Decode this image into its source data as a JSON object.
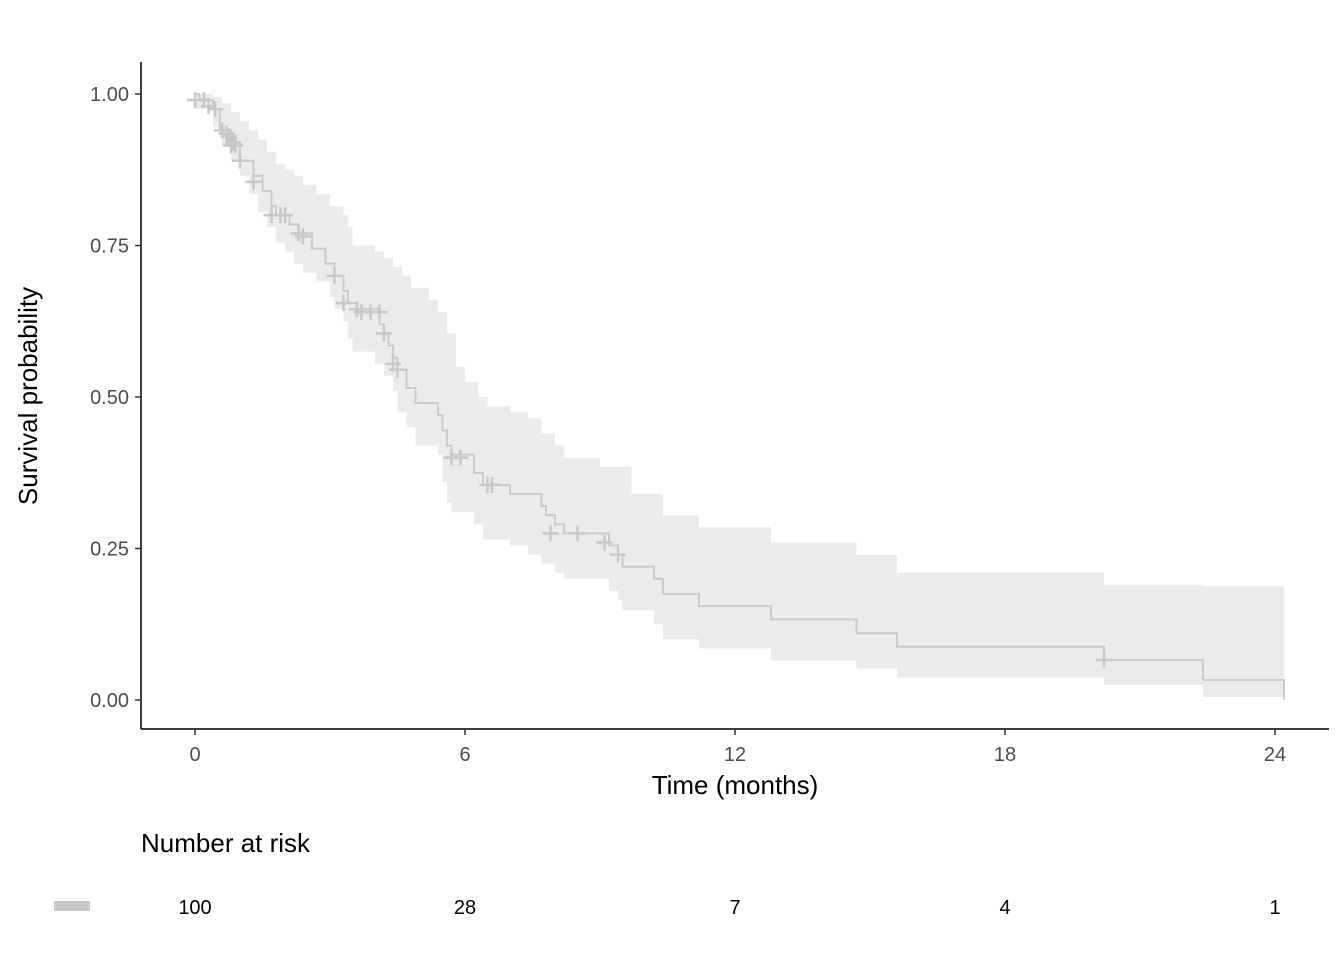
{
  "chart_data": {
    "type": "line",
    "subtype": "kaplan-meier",
    "xlabel": "Time (months)",
    "ylabel": "Survival probability",
    "xlim": [
      -1.2,
      25.2
    ],
    "ylim": [
      -0.05,
      1.05
    ],
    "x_ticks": [
      0,
      6,
      12,
      18,
      24
    ],
    "y_ticks": [
      0,
      0.25,
      0.5,
      0.75,
      1.0
    ],
    "y_tick_labels": [
      "0.00",
      "0.25",
      "0.50",
      "0.75",
      "1.00"
    ],
    "grid": false,
    "colors": {
      "line": "#c8c8c8",
      "band": "#ebebeb",
      "censor": "#c8c8c8",
      "axis": "#000000"
    },
    "series": [
      {
        "survival_steps": [
          [
            0,
            1.0
          ],
          [
            0.1,
            0.99
          ],
          [
            0.4,
            0.975
          ],
          [
            0.55,
            0.94
          ],
          [
            0.8,
            0.915
          ],
          [
            1.0,
            0.89
          ],
          [
            1.3,
            0.865
          ],
          [
            1.5,
            0.84
          ],
          [
            1.7,
            0.815
          ],
          [
            1.8,
            0.8
          ],
          [
            2.1,
            0.785
          ],
          [
            2.3,
            0.77
          ],
          [
            2.6,
            0.745
          ],
          [
            2.9,
            0.72
          ],
          [
            3.1,
            0.7
          ],
          [
            3.3,
            0.675
          ],
          [
            3.4,
            0.655
          ],
          [
            3.6,
            0.645
          ],
          [
            4.1,
            0.62
          ],
          [
            4.2,
            0.605
          ],
          [
            4.3,
            0.585
          ],
          [
            4.4,
            0.565
          ],
          [
            4.5,
            0.545
          ],
          [
            4.7,
            0.515
          ],
          [
            4.9,
            0.49
          ],
          [
            5.4,
            0.47
          ],
          [
            5.5,
            0.445
          ],
          [
            5.6,
            0.42
          ],
          [
            5.7,
            0.405
          ],
          [
            6.2,
            0.375
          ],
          [
            6.4,
            0.355
          ],
          [
            7.0,
            0.34
          ],
          [
            7.7,
            0.32
          ],
          [
            7.8,
            0.305
          ],
          [
            8.0,
            0.29
          ],
          [
            8.2,
            0.275
          ],
          [
            9.2,
            0.255
          ],
          [
            9.4,
            0.24
          ],
          [
            9.5,
            0.22
          ],
          [
            10.2,
            0.2
          ],
          [
            10.4,
            0.175
          ],
          [
            11.2,
            0.155
          ],
          [
            12.8,
            0.133
          ],
          [
            14.7,
            0.11
          ],
          [
            15.6,
            0.088
          ],
          [
            20.2,
            0.066
          ],
          [
            22.4,
            0.033
          ],
          [
            24.2,
            0.0
          ]
        ],
        "ci_upper": [
          [
            0,
            1.0
          ],
          [
            0.4,
            0.995
          ],
          [
            0.6,
            0.985
          ],
          [
            0.8,
            0.97
          ],
          [
            1.0,
            0.955
          ],
          [
            1.2,
            0.94
          ],
          [
            1.4,
            0.925
          ],
          [
            1.6,
            0.905
          ],
          [
            1.8,
            0.885
          ],
          [
            2.0,
            0.875
          ],
          [
            2.2,
            0.865
          ],
          [
            2.4,
            0.85
          ],
          [
            2.7,
            0.835
          ],
          [
            3.0,
            0.815
          ],
          [
            3.3,
            0.8
          ],
          [
            3.4,
            0.78
          ],
          [
            3.5,
            0.75
          ],
          [
            4.0,
            0.74
          ],
          [
            4.2,
            0.73
          ],
          [
            4.4,
            0.715
          ],
          [
            4.6,
            0.7
          ],
          [
            4.8,
            0.68
          ],
          [
            5.2,
            0.66
          ],
          [
            5.4,
            0.64
          ],
          [
            5.6,
            0.605
          ],
          [
            5.8,
            0.55
          ],
          [
            6.0,
            0.525
          ],
          [
            6.3,
            0.5
          ],
          [
            6.5,
            0.485
          ],
          [
            7.0,
            0.475
          ],
          [
            7.4,
            0.465
          ],
          [
            7.7,
            0.44
          ],
          [
            8.0,
            0.42
          ],
          [
            8.2,
            0.4
          ],
          [
            9.0,
            0.385
          ],
          [
            9.7,
            0.34
          ],
          [
            10.4,
            0.305
          ],
          [
            11.2,
            0.285
          ],
          [
            12.8,
            0.26
          ],
          [
            14.7,
            0.24
          ],
          [
            15.6,
            0.21
          ],
          [
            20.2,
            0.19
          ],
          [
            22.4,
            0.188
          ],
          [
            24.2,
            0.188
          ]
        ],
        "ci_lower": [
          [
            0,
            0.975
          ],
          [
            0.4,
            0.945
          ],
          [
            0.6,
            0.915
          ],
          [
            0.8,
            0.89
          ],
          [
            1.0,
            0.865
          ],
          [
            1.2,
            0.835
          ],
          [
            1.4,
            0.805
          ],
          [
            1.6,
            0.78
          ],
          [
            1.8,
            0.755
          ],
          [
            2.0,
            0.74
          ],
          [
            2.2,
            0.72
          ],
          [
            2.4,
            0.705
          ],
          [
            2.7,
            0.69
          ],
          [
            3.0,
            0.665
          ],
          [
            3.1,
            0.645
          ],
          [
            3.3,
            0.625
          ],
          [
            3.4,
            0.595
          ],
          [
            3.5,
            0.575
          ],
          [
            4.0,
            0.555
          ],
          [
            4.2,
            0.535
          ],
          [
            4.4,
            0.51
          ],
          [
            4.5,
            0.475
          ],
          [
            4.7,
            0.45
          ],
          [
            4.9,
            0.42
          ],
          [
            5.4,
            0.405
          ],
          [
            5.5,
            0.36
          ],
          [
            5.6,
            0.325
          ],
          [
            5.7,
            0.31
          ],
          [
            6.2,
            0.29
          ],
          [
            6.4,
            0.265
          ],
          [
            7.0,
            0.255
          ],
          [
            7.4,
            0.24
          ],
          [
            7.7,
            0.225
          ],
          [
            8.0,
            0.21
          ],
          [
            8.2,
            0.2
          ],
          [
            9.2,
            0.18
          ],
          [
            9.4,
            0.165
          ],
          [
            9.5,
            0.148
          ],
          [
            10.2,
            0.125
          ],
          [
            10.4,
            0.1
          ],
          [
            11.2,
            0.085
          ],
          [
            12.8,
            0.065
          ],
          [
            14.7,
            0.052
          ],
          [
            15.6,
            0.037
          ],
          [
            20.2,
            0.025
          ],
          [
            22.4,
            0.005
          ],
          [
            24.2,
            0.0
          ]
        ],
        "censored": [
          [
            0.0,
            0.99
          ],
          [
            0.2,
            0.99
          ],
          [
            0.3,
            0.98
          ],
          [
            0.45,
            0.975
          ],
          [
            0.6,
            0.94
          ],
          [
            0.7,
            0.935
          ],
          [
            0.75,
            0.93
          ],
          [
            0.8,
            0.915
          ],
          [
            0.85,
            0.92
          ],
          [
            0.9,
            0.915
          ],
          [
            1.0,
            0.89
          ],
          [
            1.3,
            0.855
          ],
          [
            1.7,
            0.8
          ],
          [
            1.9,
            0.8
          ],
          [
            2.0,
            0.8
          ],
          [
            2.3,
            0.77
          ],
          [
            2.4,
            0.765
          ],
          [
            3.1,
            0.7
          ],
          [
            3.3,
            0.655
          ],
          [
            3.6,
            0.645
          ],
          [
            3.7,
            0.64
          ],
          [
            3.9,
            0.64
          ],
          [
            4.1,
            0.64
          ],
          [
            4.2,
            0.605
          ],
          [
            4.4,
            0.555
          ],
          [
            4.5,
            0.545
          ],
          [
            5.7,
            0.4
          ],
          [
            5.9,
            0.4
          ],
          [
            6.5,
            0.355
          ],
          [
            6.6,
            0.355
          ],
          [
            7.9,
            0.275
          ],
          [
            8.5,
            0.275
          ],
          [
            9.1,
            0.26
          ],
          [
            9.4,
            0.24
          ],
          [
            20.2,
            0.066
          ]
        ]
      }
    ],
    "risk_table": {
      "title": "Number at risk",
      "times": [
        0,
        6,
        12,
        18,
        24
      ],
      "labels": [
        "100",
        "28",
        "7",
        "4",
        "1"
      ]
    }
  }
}
